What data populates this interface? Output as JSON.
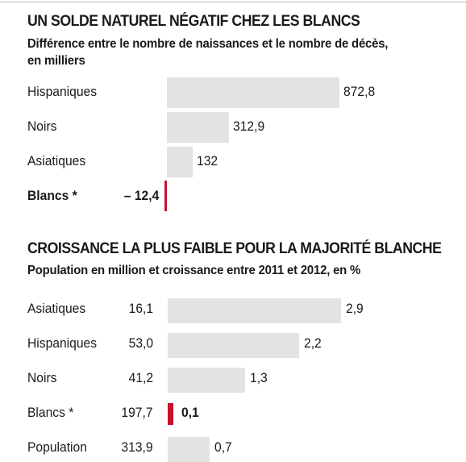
{
  "chart_data": [
    {
      "type": "bar",
      "title": "UN SOLDE NATUREL NÉGATIF CHEZ LES BLANCS",
      "subtitle_lines": [
        "Différence entre le nombre de naissances et le nombre de décès,",
        "en milliers"
      ],
      "categories": [
        "Hispaniques",
        "Noirs",
        "Asiatiques",
        "Blancs *"
      ],
      "values": [
        872.8,
        312.9,
        132,
        -12.4
      ],
      "value_labels": [
        "872,8",
        "312,9",
        "132",
        "– 12,4"
      ],
      "highlight": "Blancs *",
      "colors": {
        "bar": "#e3e3e3",
        "highlight": "#c8102e"
      }
    },
    {
      "type": "bar",
      "title": "CROISSANCE LA PLUS FAIBLE POUR LA MAJORITÉ BLANCHE",
      "subtitle": "Population en million et croissance entre 2011 et 2012, en %",
      "categories": [
        "Asiatiques",
        "Hispaniques",
        "Noirs",
        "Blancs *",
        "Population"
      ],
      "population": [
        16.1,
        53.0,
        41.2,
        197.7,
        313.9
      ],
      "population_labels": [
        "16,1",
        "53,0",
        "41,2",
        "197,7",
        "313,9"
      ],
      "values": [
        2.9,
        2.2,
        1.3,
        0.1,
        0.7
      ],
      "value_labels": [
        "2,9",
        "2,2",
        "1,3",
        "0,1",
        "0,7"
      ],
      "highlight": "Blancs *",
      "colors": {
        "bar": "#e3e3e3",
        "highlight": "#c8102e"
      }
    }
  ]
}
